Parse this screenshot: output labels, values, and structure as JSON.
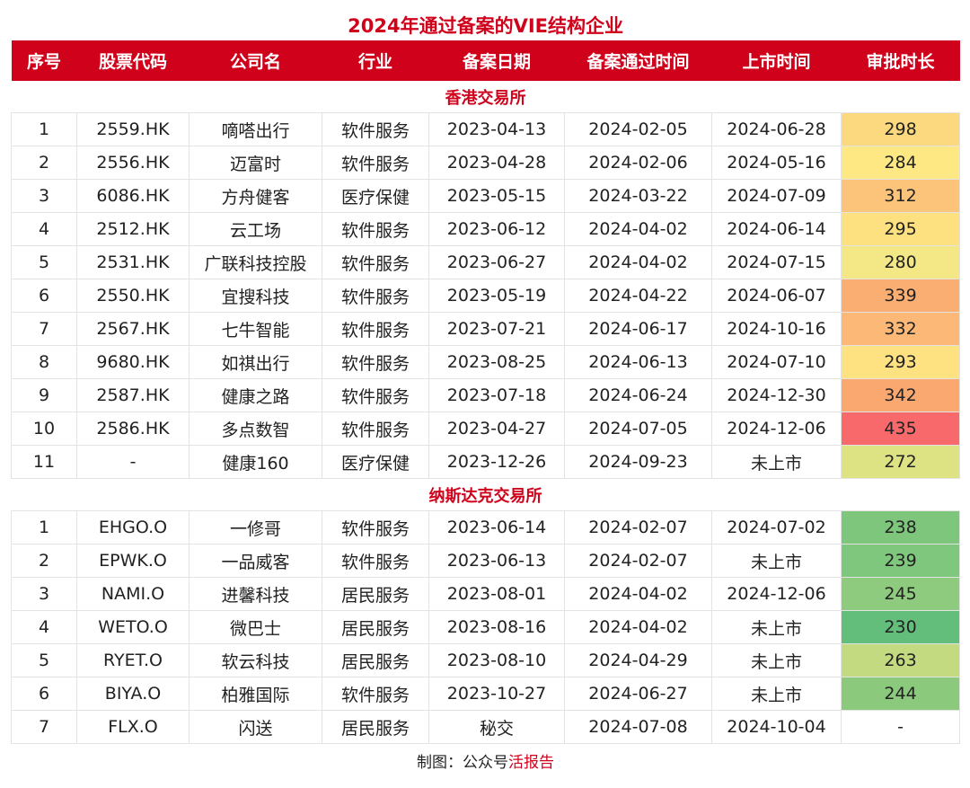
{
  "title": "2024年通过备案的VIE结构企业",
  "header": [
    "序号",
    "股票代码",
    "公司名",
    "行业",
    "备案日期",
    "备案通过时间",
    "上市时间",
    "审批时长"
  ],
  "sections": [
    {
      "name": "香港交易所",
      "rows": [
        [
          "1",
          "2559.HK",
          "嘀嗒出行",
          "软件服务",
          "2023-04-13",
          "2024-02-05",
          "2024-06-28",
          "298"
        ],
        [
          "2",
          "2556.HK",
          "迈富时",
          "软件服务",
          "2023-04-28",
          "2024-02-06",
          "2024-05-16",
          "284"
        ],
        [
          "3",
          "6086.HK",
          "方舟健客",
          "医疗保健",
          "2023-05-15",
          "2024-03-22",
          "2024-07-09",
          "312"
        ],
        [
          "4",
          "2512.HK",
          "云工场",
          "软件服务",
          "2023-06-12",
          "2024-04-02",
          "2024-06-14",
          "295"
        ],
        [
          "5",
          "2531.HK",
          "广联科技控股",
          "软件服务",
          "2023-06-27",
          "2024-04-02",
          "2024-07-15",
          "280"
        ],
        [
          "6",
          "2550.HK",
          "宜搜科技",
          "软件服务",
          "2023-05-19",
          "2024-04-22",
          "2024-06-07",
          "339"
        ],
        [
          "7",
          "2567.HK",
          "七牛智能",
          "软件服务",
          "2023-07-21",
          "2024-06-17",
          "2024-10-16",
          "332"
        ],
        [
          "8",
          "9680.HK",
          "如祺出行",
          "软件服务",
          "2023-08-25",
          "2024-06-13",
          "2024-07-10",
          "293"
        ],
        [
          "9",
          "2587.HK",
          "健康之路",
          "软件服务",
          "2023-07-18",
          "2024-06-24",
          "2024-12-30",
          "342"
        ],
        [
          "10",
          "2586.HK",
          "多点数智",
          "软件服务",
          "2023-04-27",
          "2024-07-05",
          "2024-12-06",
          "435"
        ],
        [
          "11",
          "-",
          "健康160",
          "医疗保健",
          "2023-12-26",
          "2024-09-23",
          "未上市",
          "272"
        ]
      ],
      "heat_colors": [
        "#fcd97e",
        "#fde883",
        "#fcc47a",
        "#fde07f",
        "#f3e885",
        "#fbae72",
        "#fbb876",
        "#fee282",
        "#fba870",
        "#f8696b",
        "#dde283"
      ]
    },
    {
      "name": "纳斯达克交易所",
      "rows": [
        [
          "1",
          "EHGO.O",
          "一修哥",
          "软件服务",
          "2023-06-14",
          "2024-02-07",
          "2024-07-02",
          "238"
        ],
        [
          "2",
          "EPWK.O",
          "一品威客",
          "软件服务",
          "2023-06-13",
          "2024-02-07",
          "未上市",
          "239"
        ],
        [
          "3",
          "NAMI.O",
          "进馨科技",
          "居民服务",
          "2023-08-01",
          "2024-04-02",
          "2024-12-06",
          "245"
        ],
        [
          "4",
          "WETO.O",
          "微巴士",
          "居民服务",
          "2023-08-16",
          "2024-04-02",
          "未上市",
          "230"
        ],
        [
          "5",
          "RYET.O",
          "软云科技",
          "居民服务",
          "2023-08-10",
          "2024-04-29",
          "未上市",
          "263"
        ],
        [
          "6",
          "BIYA.O",
          "柏雅国际",
          "软件服务",
          "2023-10-27",
          "2024-06-27",
          "未上市",
          "244"
        ],
        [
          "7",
          "FLX.O",
          "闪送",
          "居民服务",
          "秘交",
          "2024-07-08",
          "2024-10-04",
          "-"
        ]
      ],
      "heat_colors": [
        "#7dc67b",
        "#7fc77c",
        "#8fcb7e",
        "#63be7b",
        "#c3da81",
        "#8bca7d",
        "#ffffff"
      ]
    }
  ],
  "footer": {
    "prefix": "制图：公众号",
    "source": "活报告"
  }
}
